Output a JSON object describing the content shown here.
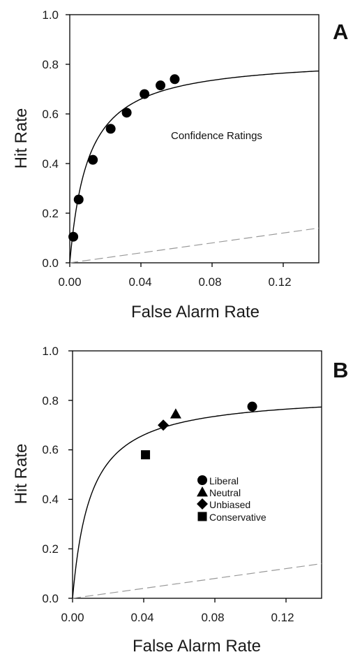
{
  "chart_data": [
    {
      "type": "scatter",
      "panel_label": "A",
      "xlabel": "False Alarm Rate",
      "ylabel": "Hit Rate",
      "xlim": [
        0,
        0.14
      ],
      "ylim": [
        0,
        1.0
      ],
      "xticks": [
        "0.00",
        "0.04",
        "0.08",
        "0.12"
      ],
      "xtick_values": [
        0,
        0.04,
        0.08,
        0.12
      ],
      "yticks": [
        "0.0",
        "0.2",
        "0.4",
        "0.6",
        "0.8",
        "1.0"
      ],
      "ytick_values": [
        0,
        0.2,
        0.4,
        0.6,
        0.8,
        1.0
      ],
      "annotation": "Confidence Ratings",
      "series": [
        {
          "marker": "circle",
          "x": [
            0.002,
            0.005,
            0.013,
            0.023,
            0.032,
            0.042,
            0.051,
            0.059
          ],
          "y": [
            0.105,
            0.255,
            0.415,
            0.54,
            0.605,
            0.68,
            0.715,
            0.74
          ]
        }
      ],
      "fit_curve": {
        "asymptote": 0.83,
        "half": 0.0103
      },
      "chance_line": {
        "x": [
          0,
          0.14
        ],
        "y": [
          0,
          0.14
        ]
      },
      "colors": {
        "points": "#000000",
        "curve": "#000000",
        "chance": "#999999"
      }
    },
    {
      "type": "scatter",
      "panel_label": "B",
      "xlabel": "False Alarm Rate",
      "ylabel": "Hit Rate",
      "xlim": [
        0,
        0.14
      ],
      "ylim": [
        0,
        1.0
      ],
      "xticks": [
        "0.00",
        "0.04",
        "0.08",
        "0.12"
      ],
      "xtick_values": [
        0,
        0.04,
        0.08,
        0.12
      ],
      "yticks": [
        "0.0",
        "0.2",
        "0.4",
        "0.6",
        "0.8",
        "1.0"
      ],
      "ytick_values": [
        0,
        0.2,
        0.4,
        0.6,
        0.8,
        1.0
      ],
      "legend_position": "center-right",
      "series": [
        {
          "name": "Liberal",
          "marker": "circle",
          "x": [
            0.101
          ],
          "y": [
            0.775
          ]
        },
        {
          "name": "Neutral",
          "marker": "triangle",
          "x": [
            0.058
          ],
          "y": [
            0.745
          ]
        },
        {
          "name": "Unbiased",
          "marker": "diamond",
          "x": [
            0.051
          ],
          "y": [
            0.7
          ]
        },
        {
          "name": "Conservative",
          "marker": "square",
          "x": [
            0.041
          ],
          "y": [
            0.58
          ]
        }
      ],
      "fit_curve": {
        "asymptote": 0.83,
        "half": 0.0103
      },
      "chance_line": {
        "x": [
          0,
          0.14
        ],
        "y": [
          0,
          0.14
        ]
      },
      "colors": {
        "points": "#000000",
        "curve": "#000000",
        "chance": "#999999"
      }
    }
  ]
}
